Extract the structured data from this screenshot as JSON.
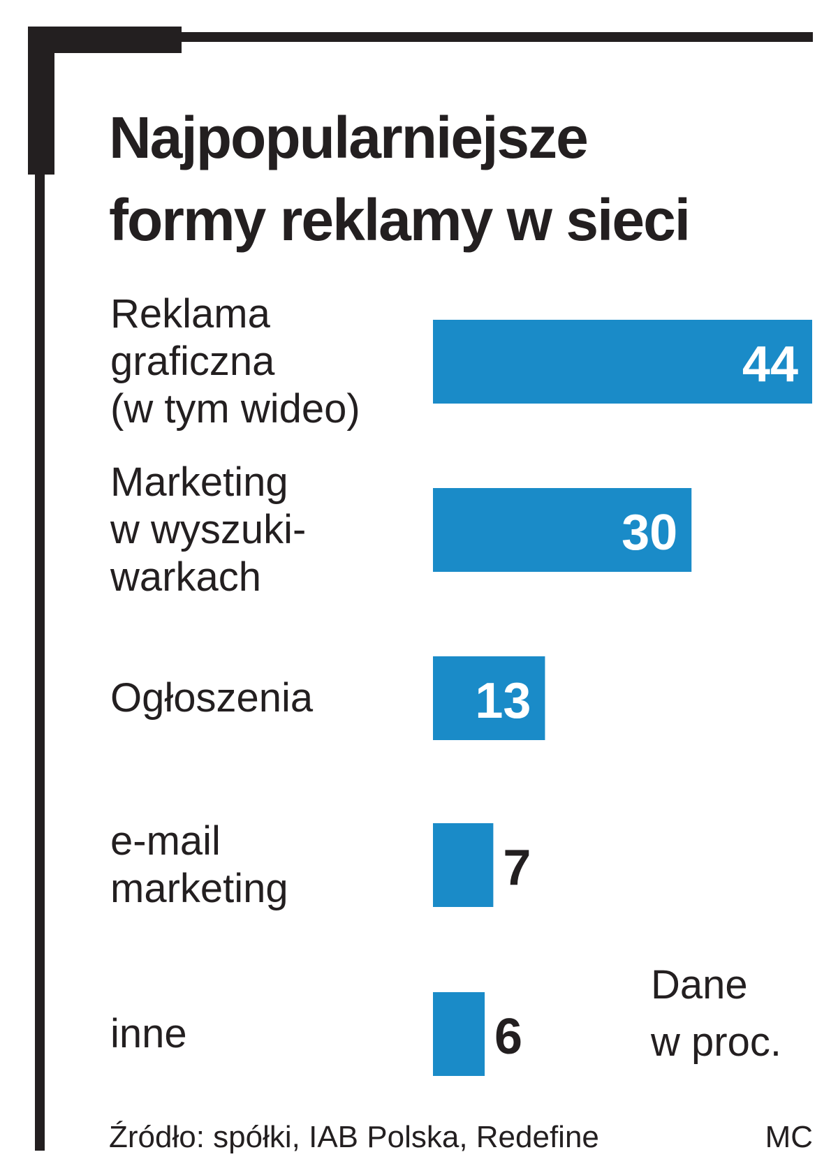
{
  "chart_data": {
    "type": "bar",
    "orientation": "horizontal",
    "title": "Najpopularniejsze\nformy reklamy w sieci",
    "categories": [
      "Reklama\ngraficzna\n(w tym wideo)",
      "Marketing\nw wyszuki-\nwarkach",
      "Ogłoszenia",
      "e-mail\nmarketing",
      "inne"
    ],
    "values": [
      44,
      30,
      13,
      7,
      6
    ],
    "color": "#1a8bc8",
    "annotation": "Dane\nw proc.",
    "source": "Źródło: spółki, IAB Polska, Redefine",
    "credit": "MC"
  }
}
